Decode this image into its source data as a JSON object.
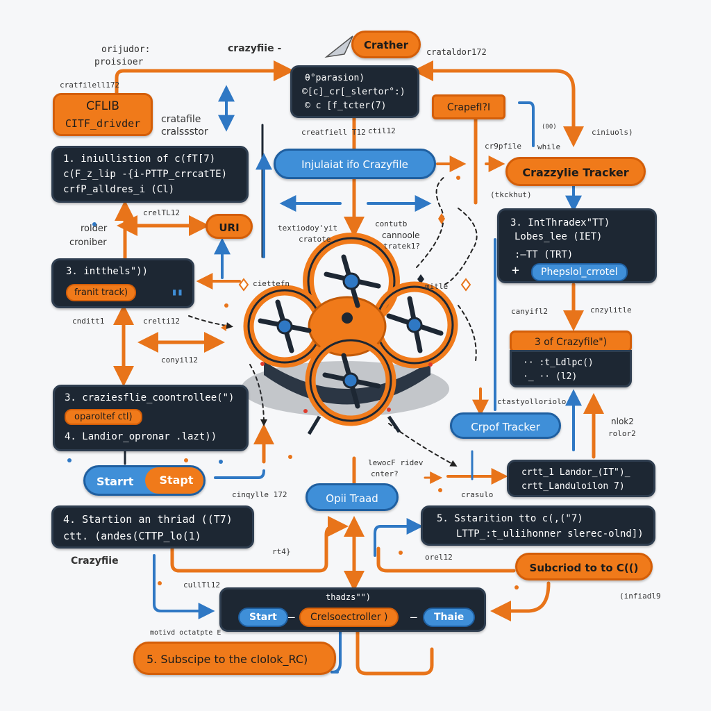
{
  "colors": {
    "orange": "#f07a1a",
    "dark": "#1d2733",
    "blue": "#3f8fd8",
    "arrow_orange": "#e8741a",
    "arrow_blue": "#2f78c4"
  },
  "labels": {
    "orijudor": "orijudor:",
    "proisioer": "proisioer",
    "crazyfile_top": "crazyfiie -",
    "cratfilell": "cratfilell172",
    "cratalder": "crataldor172",
    "cratafile": "cratafile",
    "cralssstor": "cralssstor",
    "creatfiell": "creatfiell T12",
    "ctil12": "ctil12",
    "crepfile_small": "cr9pfile",
    "while": "while",
    "num_right": "(00)",
    "ciniuols": "ciniuols)",
    "rolder": "rolder",
    "croniber": "croniber",
    "creltl2": "crelTL12",
    "textoday": "textiodoy'yit",
    "cratote": "cratote",
    "contutb": "contutb",
    "cannoolee": "cannoole",
    "tratek": "tratek1?",
    "tickhut": "(tkckhut)",
    "ciettefn": "ciettefn",
    "mitle": "mitle",
    "crazylitle": "cnzylitle",
    "cayfl2": "canyifl2",
    "cnditt1": "cnditt1",
    "crelt12": "crelti12",
    "conyil12": "conyil12",
    "ctastyolloriol": "ctastyolloriolo",
    "leiwoc": "lewocF ridev",
    "cnterc": "cnter?",
    "mlok2": "nlok2",
    "rolor2": "rolor2",
    "cinqyle": "cinqylle 172",
    "crasulo": "crasulo",
    "crazyfile_left": "Crazyfiie",
    "rt4": "rt4}",
    "orel12": "orel12",
    "cullit": "cullTl12",
    "infiadl9": "(infiadl9",
    "motivd": "motivd octatpte E"
  },
  "boxes": {
    "crather": "Crather",
    "cflib": {
      "l1": "CFLIB",
      "l2": "CITF_drivder"
    },
    "top_code": {
      "l1": "θ°parasion)",
      "l2": "©[c]_cr[_slertor°:)",
      "l3": "© c  [f_tcter(7)"
    },
    "crapefi": "CrapefI?I",
    "init_crazyfile": "Injulaiat ifo Crazyfile",
    "crazylie_tracker": "Crazzylie Tracker",
    "init_box": {
      "l1": "1.  iniullistion of c(fT[7)",
      "l2": "c(F_z_lip -{i-PTTP_crrcatTE)",
      "l3": "crfP_alldres_i (Cl)"
    },
    "uri": "URI",
    "right3": {
      "l1": "3.  IntThradex\"TT)",
      "l2": "Lobes_lee (IET)",
      "l3": ":—TT   (TRT)",
      "pill": "Phepslol_crrotel"
    },
    "left3": {
      "l1": "3.   intthels\"))",
      "pill": "franit track)"
    },
    "craz3": "3   of Crazyfile\")",
    "craz3_code": {
      "l1": "·· :t_Ldlpc()",
      "l2": "·_  ·· (l2)"
    },
    "crpof": "Crpof Tracker",
    "ctrl": {
      "l1": "3.  craziesflie_coontrollee(\")",
      "pill": "oparoltef ctl)",
      "l2": "4.  Landior_opronar .lazt))"
    },
    "startstapt": {
      "a": "Starrt",
      "b": "Stapt"
    },
    "opii": "Opii Traad",
    "landor": {
      "l1": "crtt_1  Landor_(IT\")_",
      "l2": "crtt_Landuloilon 7)"
    },
    "start4": {
      "l1": "4.  Startion an thriad ((T7)",
      "l2": "ctt. (andes(CTTP_lo(1)"
    },
    "start5": {
      "l1": "5.   Sstarition tto c(,(\"7)",
      "l2": "LTTP_:t_uliihonner slerec-olnd])"
    },
    "subcrio": "Subcriod to to C(()",
    "bottom": {
      "head": "thadzs\"\")",
      "start": "Start",
      "mid": "Crelsoectroller )",
      "end": "Thaie"
    },
    "subscipe": "5. Subscipe to the  clolok_RC)"
  }
}
